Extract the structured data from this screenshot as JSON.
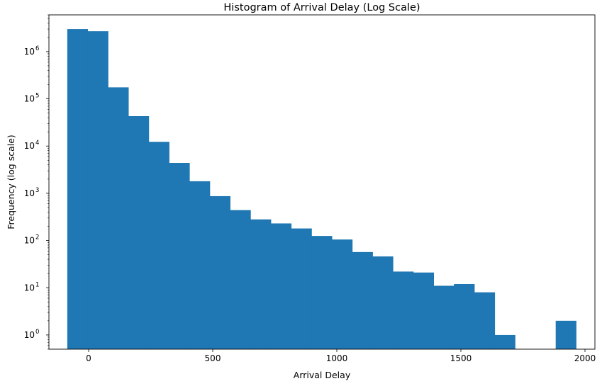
{
  "chart_data": {
    "type": "bar",
    "title": "Histogram of Arrival Delay (Log Scale)",
    "xlabel": "Arrival Delay",
    "ylabel": "Frequency (log scale)",
    "yscale": "log",
    "xlim": [
      -160,
      2040
    ],
    "ylim": [
      0.5,
      6000000
    ],
    "x_ticks": [
      0,
      500,
      1000,
      1500,
      2000
    ],
    "x_tick_labels": [
      "0",
      "500",
      "1000",
      "1500",
      "2000"
    ],
    "y_ticks": [
      1,
      10,
      100,
      1000,
      10000,
      100000,
      1000000
    ],
    "y_tick_labels": [
      {
        "base": "10",
        "exp": "0"
      },
      {
        "base": "10",
        "exp": "1"
      },
      {
        "base": "10",
        "exp": "2"
      },
      {
        "base": "10",
        "exp": "3"
      },
      {
        "base": "10",
        "exp": "4"
      },
      {
        "base": "10",
        "exp": "5"
      },
      {
        "base": "10",
        "exp": "6"
      }
    ],
    "bin_edges": [
      -86,
      -4,
      78,
      160,
      242,
      324,
      406,
      488,
      570,
      652,
      734,
      816,
      898,
      980,
      1062,
      1144,
      1226,
      1308,
      1390,
      1472,
      1554,
      1636,
      1718,
      1800,
      1882,
      1964
    ],
    "counts": [
      3000000,
      2700000,
      175000,
      43000,
      12300,
      4400,
      1800,
      870,
      440,
      280,
      230,
      180,
      125,
      105,
      57,
      46,
      22,
      21,
      11,
      12,
      8,
      1,
      0,
      0,
      2
    ],
    "color": "#1f77b4",
    "grid": false,
    "legend": "none"
  }
}
